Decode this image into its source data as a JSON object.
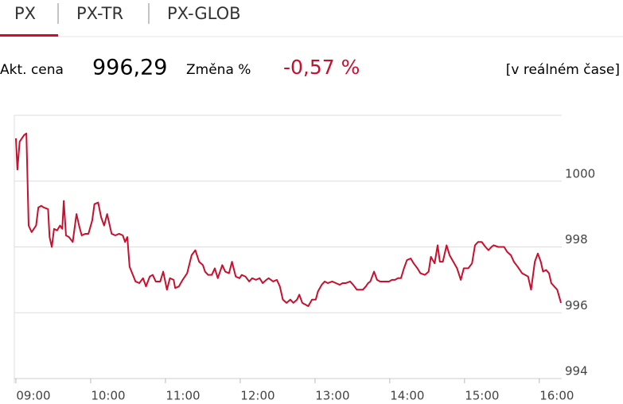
{
  "tabs": [
    "PX",
    "PX-TR",
    "PX-GLOB"
  ],
  "selected_tab": 0,
  "quote": {
    "price_label": "Akt. cena",
    "price": "996,29",
    "change_label": "Změna %",
    "change": "-0,57 %",
    "realtime": "[v reálném čase]"
  },
  "chart_data": {
    "type": "line",
    "color": "#c8102e",
    "grid": true,
    "xlim": [
      9,
      16.3
    ],
    "ylim": [
      994,
      1002
    ],
    "xticks": [
      {
        "value": 9,
        "label": "09:00"
      },
      {
        "value": 10,
        "label": "10:00"
      },
      {
        "value": 11,
        "label": "11:00"
      },
      {
        "value": 12,
        "label": "12:00"
      },
      {
        "value": 13,
        "label": "13:00"
      },
      {
        "value": 14,
        "label": "14:00"
      },
      {
        "value": 15,
        "label": "15:00"
      },
      {
        "value": 16,
        "label": "16:00"
      }
    ],
    "yticks": [
      994,
      996,
      998,
      1000
    ],
    "x": [
      9.0,
      9.02,
      9.05,
      9.11,
      9.14,
      9.17,
      9.21,
      9.27,
      9.3,
      9.34,
      9.37,
      9.43,
      9.45,
      9.48,
      9.51,
      9.55,
      9.59,
      9.62,
      9.64,
      9.67,
      9.71,
      9.76,
      9.81,
      9.85,
      9.88,
      9.93,
      9.97,
      10.02,
      10.05,
      10.1,
      10.14,
      10.18,
      10.22,
      10.28,
      10.33,
      10.38,
      10.43,
      10.46,
      10.49,
      10.52,
      10.6,
      10.65,
      10.7,
      10.74,
      10.79,
      10.83,
      10.87,
      10.93,
      10.97,
      11.02,
      11.06,
      11.11,
      11.13,
      11.18,
      11.23,
      11.29,
      11.35,
      11.4,
      11.45,
      11.5,
      11.53,
      11.57,
      11.62,
      11.66,
      11.7,
      11.76,
      11.8,
      11.85,
      11.89,
      11.94,
      11.99,
      12.02,
      12.07,
      12.12,
      12.16,
      12.21,
      12.26,
      12.3,
      12.35,
      12.38,
      12.44,
      12.49,
      12.53,
      12.57,
      12.62,
      12.67,
      12.71,
      12.76,
      12.79,
      12.83,
      12.87,
      12.91,
      12.96,
      13.01,
      13.04,
      13.09,
      13.13,
      13.17,
      13.23,
      13.28,
      13.33,
      13.37,
      13.41,
      13.47,
      13.51,
      13.56,
      13.61,
      13.64,
      13.68,
      13.71,
      13.74,
      13.79,
      13.83,
      13.87,
      13.94,
      13.99,
      14.03,
      14.07,
      14.11,
      14.15,
      14.19,
      14.23,
      14.28,
      14.32,
      14.37,
      14.41,
      14.47,
      14.52,
      14.55,
      14.6,
      14.64,
      14.67,
      14.71,
      14.76,
      14.8,
      14.85,
      14.9,
      14.95,
      14.99,
      15.05,
      15.1,
      15.14,
      15.18,
      15.23,
      15.28,
      15.32,
      15.36,
      15.39,
      15.45,
      15.49,
      15.53,
      15.57,
      15.62,
      15.66,
      15.71,
      15.77,
      15.81,
      15.85,
      15.89,
      15.94,
      15.98,
      16.02,
      16.05,
      16.09,
      16.13,
      16.16,
      16.2,
      16.24,
      16.29
    ],
    "values": [
      1001.3,
      1000.35,
      1001.2,
      1001.4,
      1001.45,
      998.65,
      998.45,
      998.65,
      999.2,
      999.25,
      999.2,
      999.15,
      998.3,
      998.0,
      998.55,
      998.5,
      998.65,
      998.55,
      999.4,
      998.35,
      998.3,
      998.15,
      999.0,
      998.6,
      998.35,
      998.4,
      998.4,
      998.8,
      999.3,
      999.35,
      998.9,
      998.65,
      999.0,
      998.4,
      998.35,
      998.4,
      998.35,
      998.15,
      998.3,
      997.4,
      996.95,
      996.9,
      997.05,
      996.8,
      997.1,
      997.15,
      996.95,
      996.95,
      997.25,
      996.7,
      997.05,
      997.0,
      996.75,
      996.8,
      997.0,
      997.2,
      997.75,
      997.9,
      997.55,
      997.45,
      997.25,
      997.15,
      997.15,
      997.35,
      997.05,
      997.45,
      997.25,
      997.2,
      997.55,
      997.1,
      997.05,
      997.15,
      997.1,
      996.95,
      997.05,
      997.0,
      997.05,
      996.9,
      997.0,
      997.05,
      996.95,
      997.0,
      996.8,
      996.4,
      996.3,
      996.4,
      996.3,
      996.4,
      996.55,
      996.3,
      996.25,
      996.2,
      996.4,
      996.4,
      996.65,
      996.85,
      996.95,
      996.9,
      996.95,
      996.9,
      996.85,
      996.9,
      996.9,
      996.95,
      996.85,
      996.7,
      996.7,
      996.7,
      996.8,
      996.9,
      996.95,
      997.25,
      997.0,
      996.95,
      996.95,
      996.95,
      997.0,
      997.0,
      997.05,
      997.05,
      997.35,
      997.6,
      997.65,
      997.5,
      997.35,
      997.2,
      997.15,
      997.25,
      997.7,
      997.5,
      998.05,
      997.55,
      997.55,
      998.05,
      997.75,
      997.55,
      997.35,
      997.0,
      997.35,
      997.35,
      997.5,
      998.05,
      998.15,
      998.15,
      998.0,
      997.9,
      998.0,
      998.05,
      998.0,
      998.0,
      998.0,
      997.85,
      997.75,
      997.55,
      997.4,
      997.2,
      997.15,
      997.1,
      996.7,
      997.55,
      997.8,
      997.55,
      997.25,
      997.3,
      997.2,
      996.9,
      996.8,
      996.7,
      996.3
    ]
  }
}
